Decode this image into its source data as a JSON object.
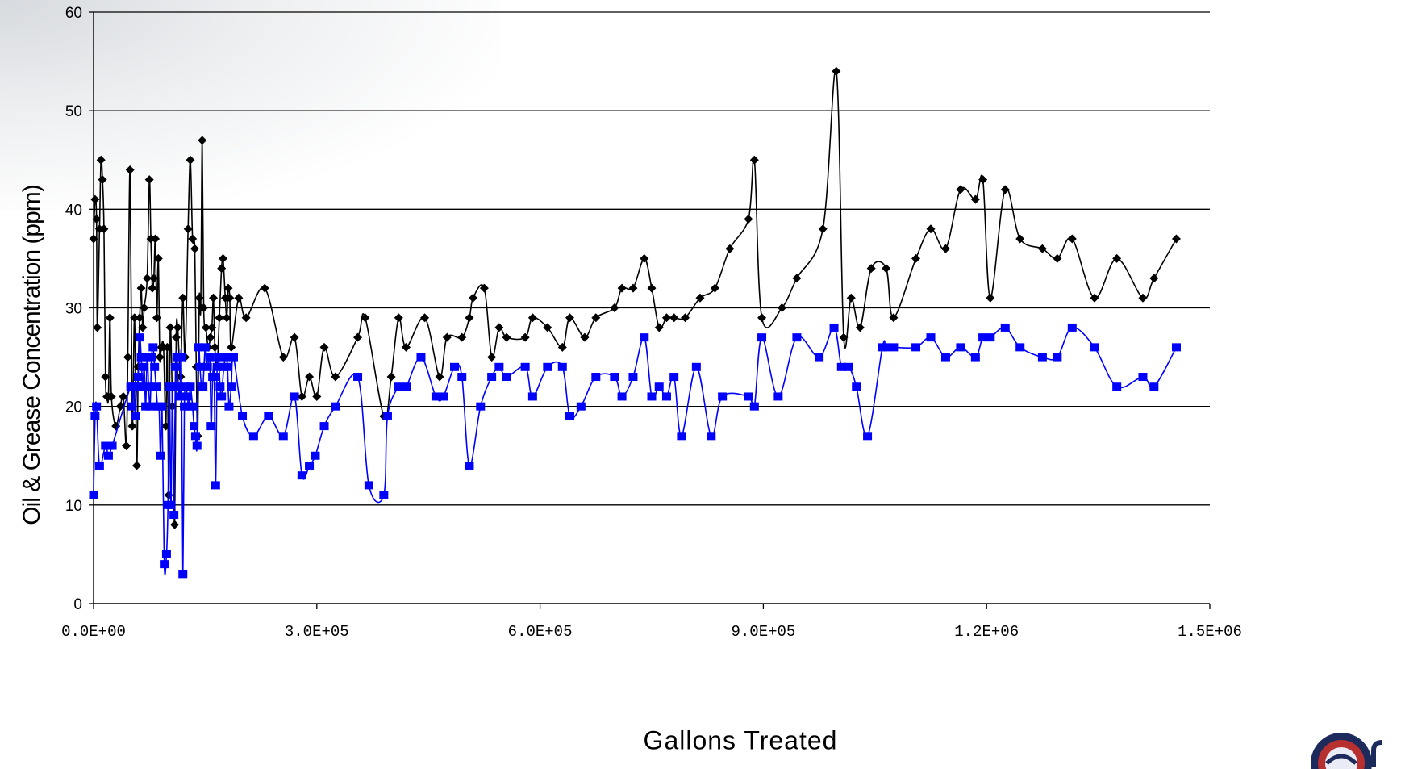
{
  "chart_data": {
    "type": "line",
    "title": "",
    "xlabel": "Gallons Treated",
    "ylabel": "Oil & Grease Concentration (ppm)",
    "xlim": [
      0,
      1500000
    ],
    "ylim": [
      0,
      60
    ],
    "x_ticks": [
      0,
      300000,
      600000,
      900000,
      1200000,
      1500000
    ],
    "x_tick_labels": [
      "0.0E+00",
      "3.0E+05",
      "6.0E+05",
      "9.0E+05",
      "1.2E+06",
      "1.5E+06"
    ],
    "y_ticks": [
      0,
      10,
      20,
      30,
      40,
      50,
      60
    ],
    "y_tick_labels": [
      "0",
      "10",
      "20",
      "30",
      "40",
      "50",
      "60"
    ],
    "grid": "horizontal",
    "legend": "none",
    "series": [
      {
        "color": "#000000",
        "marker": "diamond",
        "points": [
          [
            0,
            37
          ],
          [
            2000,
            41
          ],
          [
            4000,
            39
          ],
          [
            5000,
            28
          ],
          [
            8000,
            38
          ],
          [
            10000,
            45
          ],
          [
            12000,
            43
          ],
          [
            14000,
            38
          ],
          [
            16000,
            23
          ],
          [
            18000,
            21
          ],
          [
            20000,
            21
          ],
          [
            22000,
            29
          ],
          [
            24000,
            21
          ],
          [
            30000,
            18
          ],
          [
            36000,
            20
          ],
          [
            40000,
            21
          ],
          [
            44000,
            16
          ],
          [
            46000,
            25
          ],
          [
            49000,
            44
          ],
          [
            52000,
            18
          ],
          [
            55000,
            29
          ],
          [
            58000,
            14
          ],
          [
            60000,
            24
          ],
          [
            62000,
            29
          ],
          [
            64000,
            32
          ],
          [
            66000,
            28
          ],
          [
            68000,
            30
          ],
          [
            72000,
            33
          ],
          [
            75000,
            43
          ],
          [
            77000,
            37
          ],
          [
            79000,
            32
          ],
          [
            81000,
            33
          ],
          [
            83000,
            37
          ],
          [
            85000,
            29
          ],
          [
            87000,
            35
          ],
          [
            89000,
            25
          ],
          [
            91000,
            26
          ],
          [
            94000,
            26
          ],
          [
            97000,
            18
          ],
          [
            99000,
            26
          ],
          [
            101000,
            11
          ],
          [
            103000,
            28
          ],
          [
            106000,
            20
          ],
          [
            109000,
            8
          ],
          [
            111000,
            27
          ],
          [
            113000,
            28
          ],
          [
            115000,
            25
          ],
          [
            117000,
            23
          ],
          [
            120000,
            31
          ],
          [
            123000,
            25
          ],
          [
            127000,
            38
          ],
          [
            130000,
            45
          ],
          [
            133000,
            37
          ],
          [
            136000,
            36
          ],
          [
            138000,
            24
          ],
          [
            140000,
            17
          ],
          [
            142000,
            31
          ],
          [
            144000,
            30
          ],
          [
            146000,
            47
          ],
          [
            148000,
            30
          ],
          [
            151000,
            28
          ],
          [
            154000,
            26
          ],
          [
            157000,
            27
          ],
          [
            159000,
            28
          ],
          [
            161000,
            31
          ],
          [
            163000,
            26
          ],
          [
            166000,
            24
          ],
          [
            169000,
            29
          ],
          [
            172000,
            34
          ],
          [
            174000,
            35
          ],
          [
            177000,
            31
          ],
          [
            179000,
            29
          ],
          [
            181000,
            32
          ],
          [
            183000,
            31
          ],
          [
            185000,
            26
          ],
          [
            195000,
            31
          ],
          [
            205000,
            29
          ],
          [
            230000,
            32
          ],
          [
            255000,
            25
          ],
          [
            270000,
            27
          ],
          [
            280000,
            21
          ],
          [
            290000,
            23
          ],
          [
            300000,
            21
          ],
          [
            310000,
            26
          ],
          [
            325000,
            23
          ],
          [
            355000,
            27
          ],
          [
            365000,
            29
          ],
          [
            390000,
            19
          ],
          [
            400000,
            23
          ],
          [
            410000,
            29
          ],
          [
            420000,
            26
          ],
          [
            445000,
            29
          ],
          [
            465000,
            23
          ],
          [
            475000,
            27
          ],
          [
            495000,
            27
          ],
          [
            505000,
            29
          ],
          [
            510000,
            31
          ],
          [
            525000,
            32
          ],
          [
            535000,
            25
          ],
          [
            545000,
            28
          ],
          [
            555000,
            27
          ],
          [
            580000,
            27
          ],
          [
            590000,
            29
          ],
          [
            610000,
            28
          ],
          [
            630000,
            26
          ],
          [
            640000,
            29
          ],
          [
            660000,
            27
          ],
          [
            675000,
            29
          ],
          [
            700000,
            30
          ],
          [
            710000,
            32
          ],
          [
            725000,
            32
          ],
          [
            740000,
            35
          ],
          [
            750000,
            32
          ],
          [
            760000,
            28
          ],
          [
            770000,
            29
          ],
          [
            780000,
            29
          ],
          [
            795000,
            29
          ],
          [
            815000,
            31
          ],
          [
            835000,
            32
          ],
          [
            855000,
            36
          ],
          [
            880000,
            39
          ],
          [
            888000,
            45
          ],
          [
            898000,
            29
          ],
          [
            925000,
            30
          ],
          [
            945000,
            33
          ],
          [
            980000,
            38
          ],
          [
            998000,
            54
          ],
          [
            1008000,
            27
          ],
          [
            1018000,
            31
          ],
          [
            1030000,
            28
          ],
          [
            1045000,
            34
          ],
          [
            1065000,
            34
          ],
          [
            1075000,
            29
          ],
          [
            1105000,
            35
          ],
          [
            1125000,
            38
          ],
          [
            1145000,
            36
          ],
          [
            1165000,
            42
          ],
          [
            1185000,
            41
          ],
          [
            1195000,
            43
          ],
          [
            1205000,
            31
          ],
          [
            1225000,
            42
          ],
          [
            1245000,
            37
          ],
          [
            1275000,
            36
          ],
          [
            1295000,
            35
          ],
          [
            1315000,
            37
          ],
          [
            1345000,
            31
          ],
          [
            1375000,
            35
          ],
          [
            1410000,
            31
          ],
          [
            1425000,
            33
          ],
          [
            1455000,
            37
          ]
        ]
      },
      {
        "color": "#0000ff",
        "marker": "square",
        "points": [
          [
            0,
            11
          ],
          [
            2000,
            19
          ],
          [
            4000,
            20
          ],
          [
            8000,
            14
          ],
          [
            16000,
            16
          ],
          [
            20000,
            15
          ],
          [
            25000,
            16
          ],
          [
            50000,
            22
          ],
          [
            52000,
            20
          ],
          [
            54000,
            22
          ],
          [
            56000,
            19
          ],
          [
            58000,
            22
          ],
          [
            60000,
            23
          ],
          [
            62000,
            27
          ],
          [
            64000,
            25
          ],
          [
            66000,
            22
          ],
          [
            68000,
            24
          ],
          [
            70000,
            20
          ],
          [
            72000,
            25
          ],
          [
            74000,
            22
          ],
          [
            76000,
            20
          ],
          [
            78000,
            25
          ],
          [
            80000,
            26
          ],
          [
            82000,
            24
          ],
          [
            84000,
            22
          ],
          [
            86000,
            20
          ],
          [
            88000,
            20
          ],
          [
            90000,
            15
          ],
          [
            92000,
            20
          ],
          [
            95000,
            4
          ],
          [
            98000,
            5
          ],
          [
            100000,
            10
          ],
          [
            102000,
            22
          ],
          [
            104000,
            10
          ],
          [
            106000,
            22
          ],
          [
            108000,
            9
          ],
          [
            110000,
            24
          ],
          [
            112000,
            25
          ],
          [
            114000,
            22
          ],
          [
            116000,
            21
          ],
          [
            118000,
            25
          ],
          [
            120000,
            3
          ],
          [
            122000,
            20
          ],
          [
            124000,
            22
          ],
          [
            126000,
            21
          ],
          [
            128000,
            20
          ],
          [
            130000,
            22
          ],
          [
            133000,
            20
          ],
          [
            135000,
            18
          ],
          [
            137000,
            17
          ],
          [
            139000,
            16
          ],
          [
            141000,
            26
          ],
          [
            143000,
            24
          ],
          [
            145000,
            22
          ],
          [
            147000,
            22
          ],
          [
            150000,
            26
          ],
          [
            153000,
            24
          ],
          [
            156000,
            25
          ],
          [
            158000,
            18
          ],
          [
            160000,
            23
          ],
          [
            162000,
            23
          ],
          [
            164000,
            12
          ],
          [
            166000,
            24
          ],
          [
            168000,
            25
          ],
          [
            170000,
            22
          ],
          [
            172000,
            21
          ],
          [
            175000,
            24
          ],
          [
            178000,
            25
          ],
          [
            180000,
            24
          ],
          [
            182000,
            20
          ],
          [
            185000,
            22
          ],
          [
            188000,
            25
          ],
          [
            200000,
            19
          ],
          [
            215000,
            17
          ],
          [
            235000,
            19
          ],
          [
            255000,
            17
          ],
          [
            270000,
            21
          ],
          [
            280000,
            13
          ],
          [
            290000,
            14
          ],
          [
            298000,
            15
          ],
          [
            310000,
            18
          ],
          [
            325000,
            20
          ],
          [
            355000,
            23
          ],
          [
            370000,
            12
          ],
          [
            390000,
            11
          ],
          [
            395000,
            19
          ],
          [
            410000,
            22
          ],
          [
            420000,
            22
          ],
          [
            440000,
            25
          ],
          [
            460000,
            21
          ],
          [
            470000,
            21
          ],
          [
            485000,
            24
          ],
          [
            495000,
            23
          ],
          [
            505000,
            14
          ],
          [
            520000,
            20
          ],
          [
            535000,
            23
          ],
          [
            545000,
            24
          ],
          [
            555000,
            23
          ],
          [
            580000,
            24
          ],
          [
            590000,
            21
          ],
          [
            610000,
            24
          ],
          [
            630000,
            24
          ],
          [
            640000,
            19
          ],
          [
            655000,
            20
          ],
          [
            675000,
            23
          ],
          [
            700000,
            23
          ],
          [
            710000,
            21
          ],
          [
            725000,
            23
          ],
          [
            740000,
            27
          ],
          [
            750000,
            21
          ],
          [
            760000,
            22
          ],
          [
            770000,
            21
          ],
          [
            780000,
            23
          ],
          [
            790000,
            17
          ],
          [
            810000,
            24
          ],
          [
            830000,
            17
          ],
          [
            845000,
            21
          ],
          [
            880000,
            21
          ],
          [
            888000,
            20
          ],
          [
            898000,
            27
          ],
          [
            920000,
            21
          ],
          [
            945000,
            27
          ],
          [
            975000,
            25
          ],
          [
            995000,
            28
          ],
          [
            1005000,
            24
          ],
          [
            1015000,
            24
          ],
          [
            1025000,
            22
          ],
          [
            1040000,
            17
          ],
          [
            1060000,
            26
          ],
          [
            1065000,
            26
          ],
          [
            1075000,
            26
          ],
          [
            1105000,
            26
          ],
          [
            1125000,
            27
          ],
          [
            1145000,
            25
          ],
          [
            1165000,
            26
          ],
          [
            1185000,
            25
          ],
          [
            1195000,
            27
          ],
          [
            1205000,
            27
          ],
          [
            1225000,
            28
          ],
          [
            1245000,
            26
          ],
          [
            1275000,
            25
          ],
          [
            1295000,
            25
          ],
          [
            1315000,
            28
          ],
          [
            1345000,
            26
          ],
          [
            1375000,
            22
          ],
          [
            1410000,
            23
          ],
          [
            1425000,
            22
          ],
          [
            1455000,
            26
          ]
        ]
      }
    ]
  }
}
